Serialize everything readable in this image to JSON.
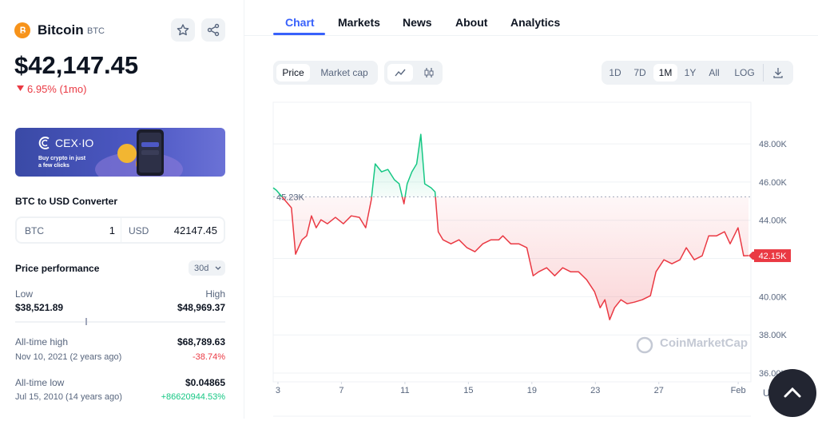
{
  "header": {
    "name": "Bitcoin",
    "symbol": "BTC",
    "price": "$42,147.45",
    "change": "6.95% (1mo)"
  },
  "banner": {
    "brand": "CEX·IO",
    "text": "Buy crypto in just a few clicks"
  },
  "converter": {
    "title": "BTC to USD Converter",
    "from_currency": "BTC",
    "from_amount": "1",
    "to_currency": "USD",
    "to_amount": "42147.45"
  },
  "performance": {
    "title": "Price performance",
    "period": "30d",
    "low_label": "Low",
    "low": "$38,521.89",
    "high_label": "High",
    "high": "$48,969.37",
    "all_time_high": {
      "label": "All-time high",
      "value": "$68,789.63",
      "date": "Nov 10, 2021 (2 years ago)",
      "change": "-38.74%"
    },
    "all_time_low": {
      "label": "All-time low",
      "value": "$0.04865",
      "date": "Jul 15, 2010 (14 years ago)",
      "change": "+86620944.53%"
    }
  },
  "tabs": [
    "Chart",
    "Markets",
    "News",
    "About",
    "Analytics"
  ],
  "toolbar": {
    "modes": [
      "Price",
      "Market cap"
    ],
    "ranges": [
      "1D",
      "7D",
      "1M",
      "1Y",
      "All",
      "LOG"
    ]
  },
  "watermark": "CoinMarketCap",
  "currency": "USD",
  "chart_data": {
    "type": "line",
    "x": [
      2.7,
      2.9,
      3.85,
      4.11,
      4.51,
      4.81,
      5.11,
      5.41,
      5.71,
      6.12,
      6.62,
      7.12,
      7.62,
      8.13,
      8.53,
      8.88,
      9.13,
      9.53,
      9.93,
      10.34,
      10.64,
      10.94,
      11.14,
      11.44,
      11.74,
      12.0,
      12.25,
      12.65,
      12.9,
      13.1,
      13.4,
      13.9,
      14.41,
      14.91,
      15.41,
      15.91,
      16.42,
      16.92,
      17.17,
      17.67,
      18.18,
      18.68,
      19.08,
      19.43,
      19.93,
      20.44,
      20.94,
      21.44,
      21.94,
      22.45,
      22.95,
      23.3,
      23.6,
      23.9,
      24.21,
      24.61,
      25.01,
      25.46,
      25.96,
      26.47,
      26.82,
      27.32,
      27.82,
      28.33,
      28.73,
      29.23,
      29.73,
      30.14,
      30.64,
      31.14,
      31.49,
      31.99,
      32.34,
      32.65
    ],
    "values": [
      45699,
      45573,
      44653,
      42226,
      42979,
      43188,
      44234,
      43607,
      44025,
      43816,
      44151,
      43816,
      44234,
      44151,
      43607,
      45071,
      46954,
      46536,
      46661,
      46117,
      45908,
      44862,
      45908,
      46536,
      46954,
      48502,
      45908,
      45699,
      45490,
      43398,
      42979,
      42770,
      42979,
      42561,
      42352,
      42770,
      42979,
      42979,
      43188,
      42770,
      42770,
      42561,
      41096,
      41306,
      41515,
      41096,
      41515,
      41306,
      41306,
      40887,
      40260,
      39423,
      39841,
      38795,
      39423,
      39841,
      39632,
      39716,
      39841,
      40050,
      41306,
      41933,
      41724,
      41933,
      42561,
      41933,
      42142,
      43188,
      43188,
      43398,
      42770,
      43607,
      42142,
      42147
    ],
    "up_color": "#16c784",
    "down_color": "#ea3943",
    "reference": {
      "value": 45230,
      "label": "45.23K"
    },
    "last_value_label": "42.15K",
    "xlim": [
      2.7,
      32.8
    ],
    "xticks": [
      3,
      7,
      11,
      15,
      19,
      23,
      27,
      {
        "value": 32,
        "label": "Feb"
      }
    ],
    "ylim": [
      35540,
      50180
    ],
    "yticks": [
      {
        "value": 36000,
        "label": "36.00K"
      },
      {
        "value": 38000,
        "label": "38.00K"
      },
      {
        "value": 40000,
        "label": "40.00K"
      },
      {
        "value": 42000,
        "label": "42.00K"
      },
      {
        "value": 44000,
        "label": "44.00K"
      },
      {
        "value": 46000,
        "label": "46.00K"
      },
      {
        "value": 48000,
        "label": "48.00K"
      }
    ],
    "grid": true
  }
}
